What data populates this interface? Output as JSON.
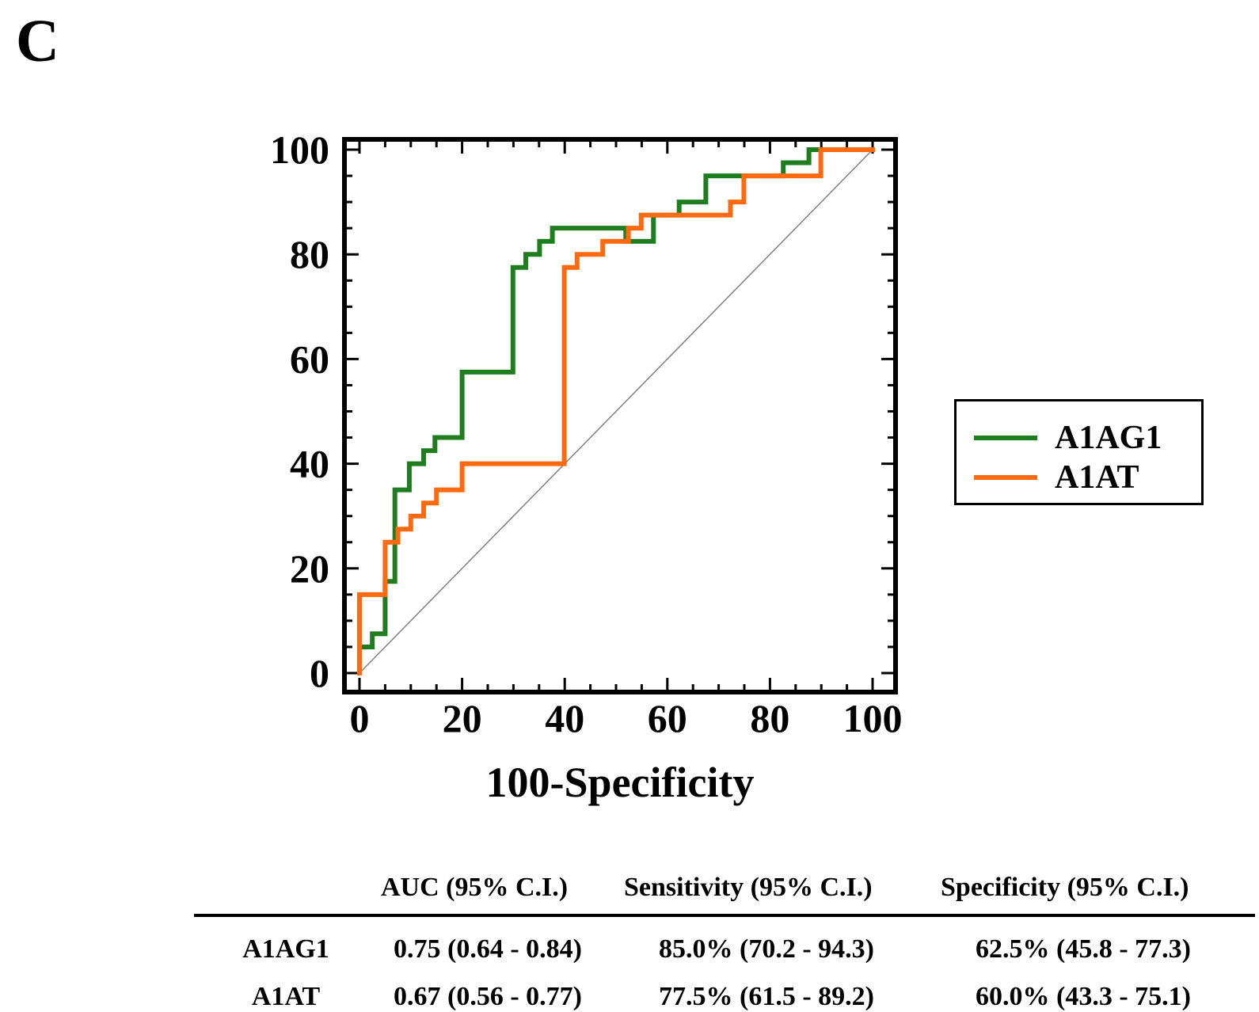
{
  "panel_label": "C",
  "chart_data": {
    "type": "line",
    "subtype": "roc-step",
    "title": "",
    "xlabel": "100-Specificity",
    "ylabel": "",
    "xlim": [
      0,
      100
    ],
    "ylim": [
      0,
      100
    ],
    "x_ticks": [
      0,
      20,
      40,
      60,
      80,
      100
    ],
    "y_ticks": [
      0,
      20,
      40,
      60,
      80,
      100
    ],
    "x_tick_labels": [
      "0",
      "20",
      "40",
      "60",
      "80",
      "100"
    ],
    "y_tick_labels": [
      "0",
      "20",
      "40",
      "60",
      "80",
      "100"
    ],
    "legend_position": "right",
    "reference_line": {
      "x": [
        0,
        100
      ],
      "y": [
        0,
        100
      ],
      "color": "#808080"
    },
    "series": [
      {
        "name": "A1AG1",
        "color": "#1e7d1e",
        "x": [
          0,
          0,
          2.5,
          2.5,
          5,
          5,
          6.9,
          6.9,
          9.7,
          9.7,
          12.5,
          12.5,
          14.7,
          14.7,
          20,
          20,
          29.9,
          29.9,
          32.4,
          32.4,
          35.1,
          35.1,
          37.6,
          37.6,
          51.9,
          51.9,
          57.3,
          57.3,
          62.3,
          62.3,
          67.5,
          67.5,
          74.9,
          74.9,
          82.6,
          82.6,
          87.6,
          87.6,
          100
        ],
        "y": [
          0,
          5,
          5,
          7.5,
          7.5,
          17.5,
          17.5,
          35,
          35,
          40,
          40,
          42.5,
          42.5,
          45,
          45,
          57.5,
          57.5,
          77.5,
          77.5,
          80,
          80,
          82.5,
          82.5,
          85,
          85,
          82.5,
          82.5,
          87.5,
          87.5,
          90,
          90,
          95,
          95,
          95,
          95,
          97.5,
          97.5,
          100,
          100
        ]
      },
      {
        "name": "A1AT",
        "color": "#ff6a10",
        "x": [
          0,
          0,
          5,
          5,
          7.5,
          7.5,
          10,
          10,
          12.5,
          12.5,
          15,
          15,
          20,
          20,
          39.9,
          39.9,
          42.4,
          42.4,
          47.4,
          47.4,
          52.4,
          52.4,
          54.9,
          54.9,
          72.3,
          72.3,
          74.9,
          74.9,
          89.9,
          89.9,
          100
        ],
        "y": [
          0,
          15,
          15,
          25,
          25,
          27.5,
          27.5,
          30,
          30,
          32.5,
          32.5,
          35,
          35,
          40,
          40,
          77.5,
          77.5,
          80,
          80,
          82.5,
          82.5,
          85,
          85,
          87.5,
          87.5,
          90,
          90,
          95,
          95,
          100,
          100
        ]
      }
    ]
  },
  "table": {
    "headers": [
      "AUC (95% C.I.)",
      "Sensitivity (95% C.I.)",
      "Specificity (95% C.I.)"
    ],
    "rows": [
      {
        "label": "A1AG1",
        "auc": "0.75 (0.64 - 0.84)",
        "sensitivity": "85.0% (70.2 - 94.3)",
        "specificity": "62.5% (45.8 - 77.3)"
      },
      {
        "label": "A1AT",
        "auc": "0.67 (0.56 - 0.77)",
        "sensitivity": "77.5% (61.5 - 89.2)",
        "specificity": "60.0% (43.3 - 75.1)"
      }
    ]
  }
}
